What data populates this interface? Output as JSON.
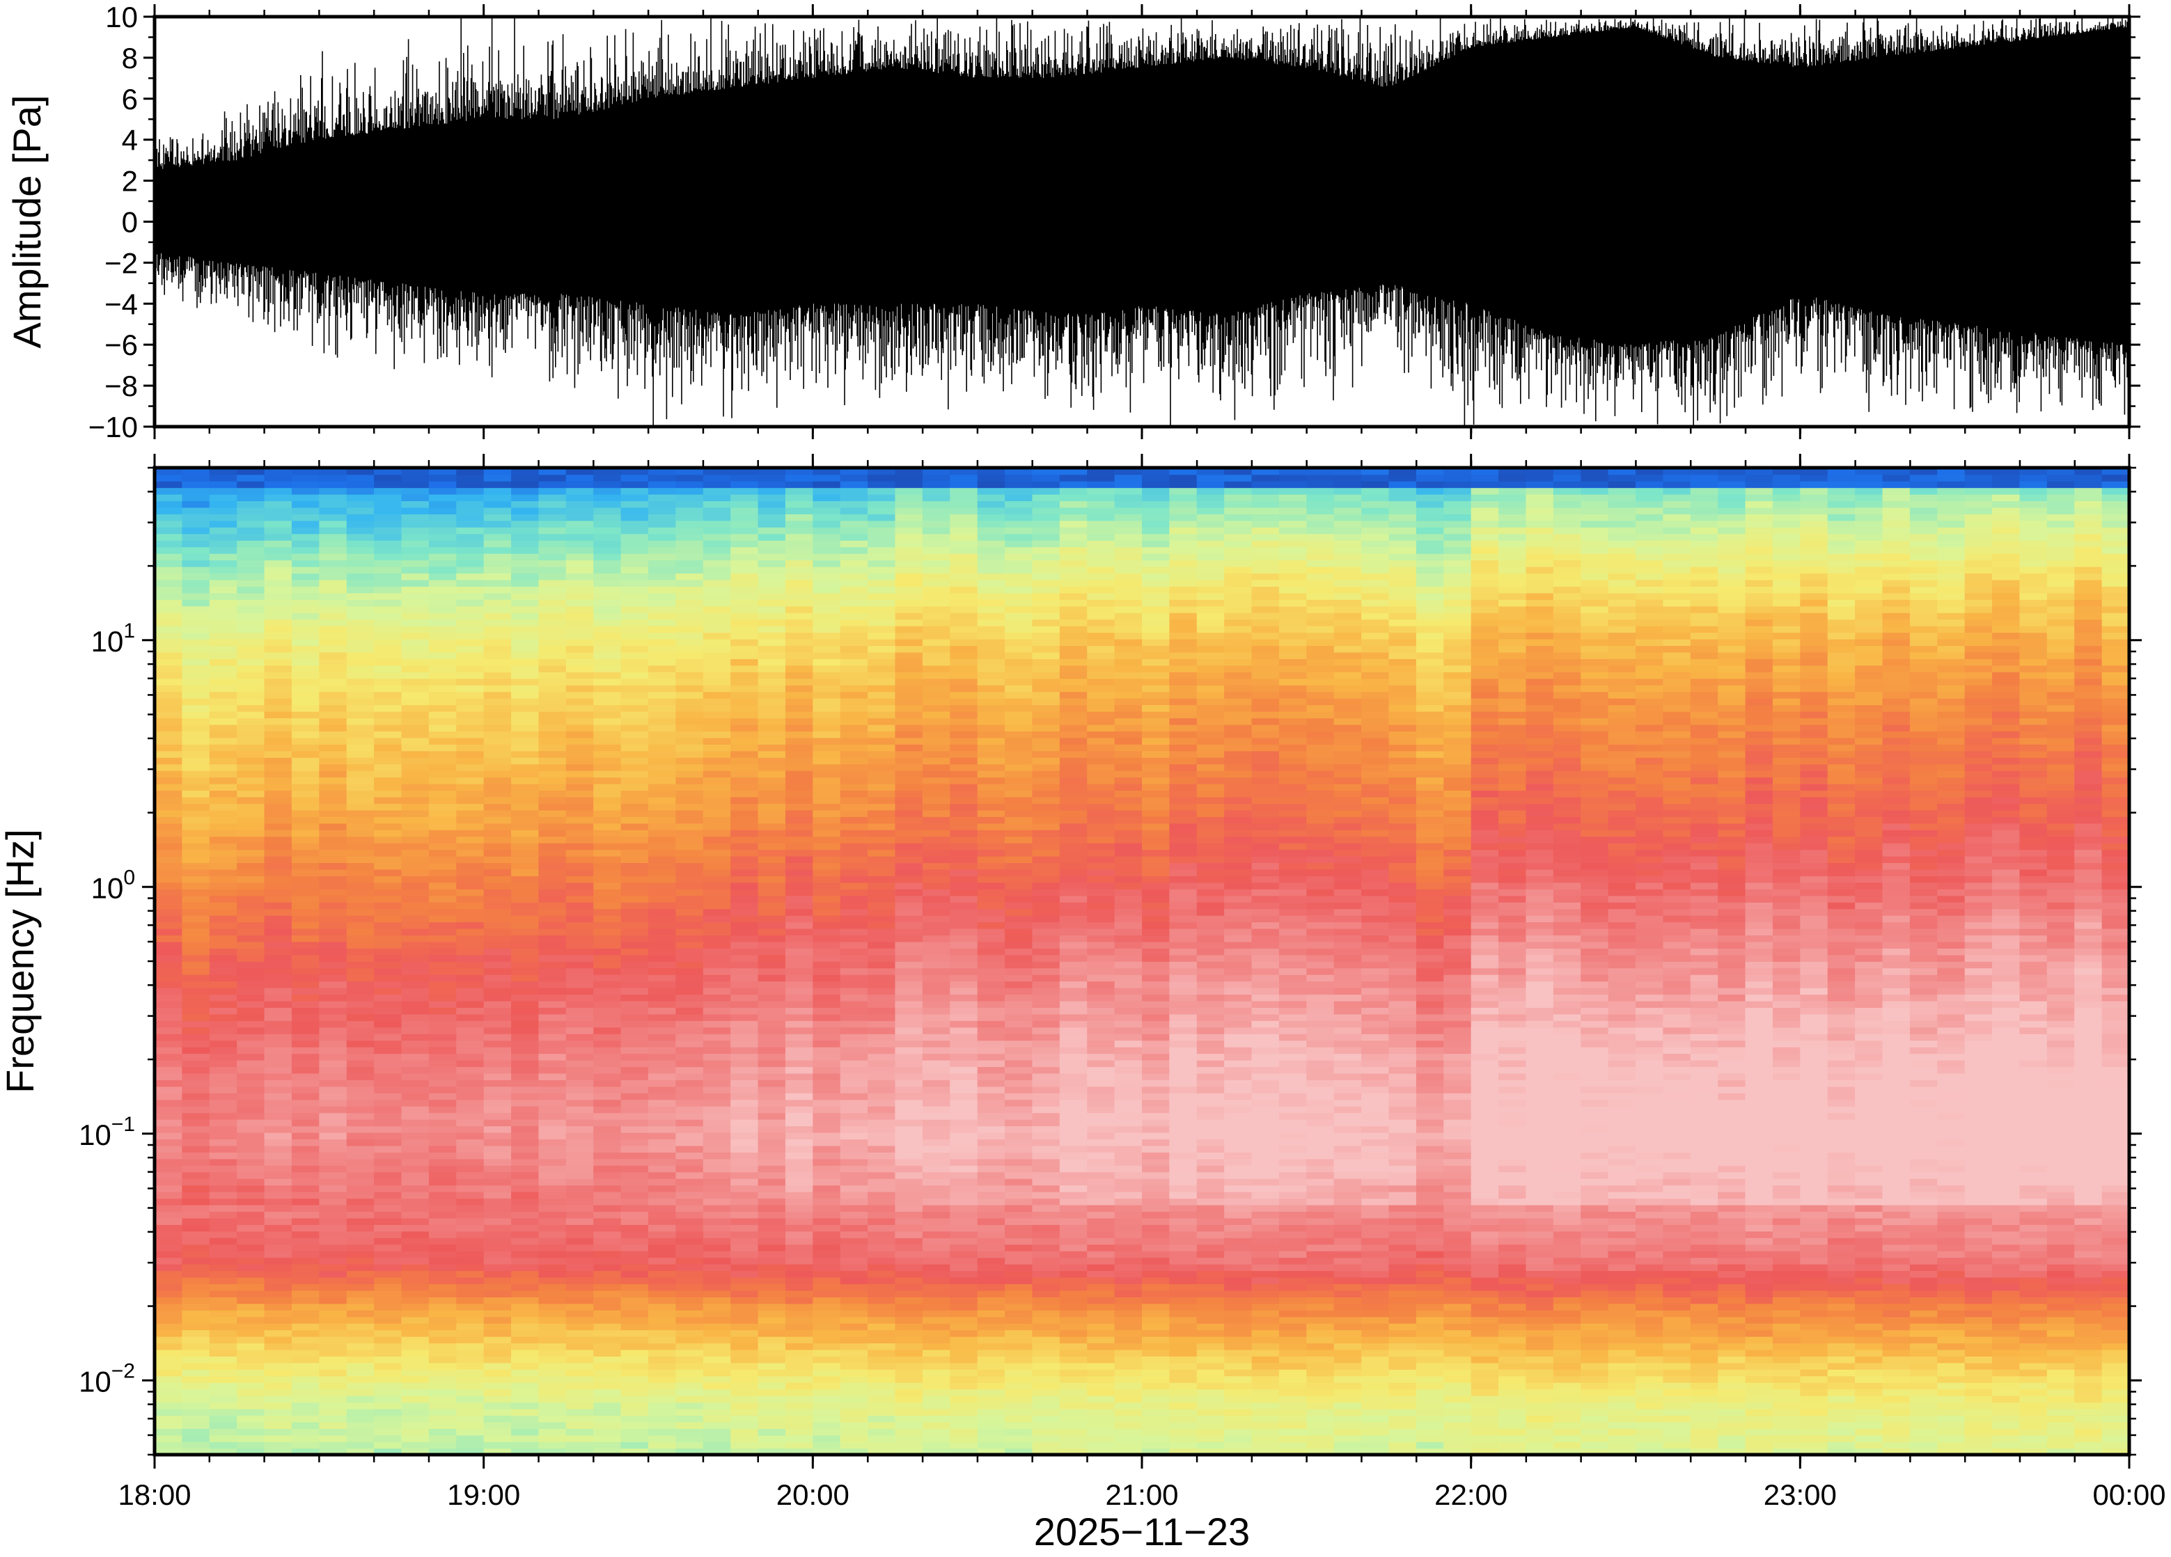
{
  "chart_data": [
    {
      "type": "line",
      "ylabel": "Amplitude [Pa]",
      "ylim": [
        -10,
        10
      ],
      "y_ticks": [
        10,
        8,
        6,
        4,
        2,
        0,
        -2,
        -4,
        -6,
        -8,
        -10
      ],
      "y_tick_labels": [
        "10",
        "8",
        "6",
        "4",
        "2",
        "0",
        "−2",
        "−4",
        "−6",
        "−8",
        "−10"
      ],
      "xlim_hours": [
        18,
        24
      ],
      "envelope": {
        "x_hours": [
          18.0,
          18.25,
          18.5,
          18.75,
          19.0,
          19.25,
          19.5,
          19.75,
          20.0,
          20.25,
          20.5,
          20.75,
          21.0,
          21.25,
          21.5,
          21.75,
          22.0,
          22.25,
          22.5,
          22.75,
          23.0,
          23.25,
          23.5,
          23.75,
          24.0
        ],
        "upper": [
          2.5,
          3.0,
          4.0,
          4.5,
          5.0,
          5.0,
          6.0,
          6.5,
          7.0,
          7.5,
          7.0,
          7.0,
          7.5,
          8.0,
          7.5,
          6.5,
          8.5,
          9.0,
          9.5,
          8.0,
          7.5,
          8.0,
          8.5,
          9.0,
          9.5
        ],
        "lower": [
          -1.5,
          -2.0,
          -2.5,
          -3.0,
          -3.5,
          -3.5,
          -4.0,
          -4.5,
          -4.0,
          -4.0,
          -4.0,
          -4.5,
          -4.0,
          -4.5,
          -3.5,
          -3.0,
          -4.0,
          -5.5,
          -6.0,
          -5.5,
          -3.5,
          -4.5,
          -5.0,
          -5.5,
          -6.0
        ],
        "peak_upper": [
          4.5,
          6.0,
          8.0,
          9.0,
          10.0,
          9.5,
          10.0,
          10.0,
          10.0,
          10.0,
          10.0,
          10.0,
          10.0,
          10.0,
          10.0,
          10.0,
          10.0,
          10.0,
          10.0,
          10.0,
          10.0,
          10.0,
          10.0,
          10.0,
          10.0
        ],
        "peak_lower": [
          -4.0,
          -5.0,
          -6.5,
          -7.0,
          -8.0,
          -8.0,
          -10.0,
          -10.0,
          -9.0,
          -9.5,
          -9.0,
          -10.0,
          -10.0,
          -10.0,
          -9.0,
          -7.5,
          -10.0,
          -10.0,
          -10.0,
          -10.0,
          -8.0,
          -9.5,
          -10.0,
          -10.0,
          -10.0
        ]
      },
      "trace_color": "#000000"
    },
    {
      "type": "heatmap",
      "ylabel": "Frequency [Hz]",
      "xlabel": "2025−11−23",
      "y_scale": "log",
      "ylim": [
        0.005,
        50
      ],
      "y_ticks": [
        {
          "value": 0.01,
          "base": "10",
          "exp": "−2"
        },
        {
          "value": 0.1,
          "base": "10",
          "exp": "−1"
        },
        {
          "value": 1,
          "base": "10",
          "exp": "0"
        },
        {
          "value": 10,
          "base": "10",
          "exp": "1"
        }
      ],
      "x_ticks": [
        {
          "value": 18,
          "label": "18:00"
        },
        {
          "value": 19,
          "label": "19:00"
        },
        {
          "value": 20,
          "label": "20:00"
        },
        {
          "value": 21,
          "label": "21:00"
        },
        {
          "value": 22,
          "label": "22:00"
        },
        {
          "value": 23,
          "label": "23:00"
        },
        {
          "value": 24,
          "label": "00:00"
        }
      ],
      "x_minor_step_hours": 0.1667,
      "xlim_hours": [
        18,
        24
      ],
      "colormap": [
        "#1a237e",
        "#1e6fe8",
        "#35b6f0",
        "#7ee6c8",
        "#d8f59a",
        "#f6e96e",
        "#f9b546",
        "#f48343",
        "#ee5a5a",
        "#f28a8a",
        "#f9c2c2"
      ],
      "level_profile": {
        "freq_hz": [
          0.005,
          0.008,
          0.012,
          0.02,
          0.03,
          0.05,
          0.1,
          0.2,
          0.5,
          1,
          2,
          5,
          10,
          20,
          40,
          50
        ],
        "level": [
          0.38,
          0.42,
          0.52,
          0.66,
          0.82,
          0.88,
          0.94,
          0.9,
          0.82,
          0.74,
          0.66,
          0.58,
          0.5,
          0.38,
          0.22,
          0.06
        ]
      },
      "time_modulation": {
        "x_hours": [
          18.0,
          18.5,
          19.0,
          19.5,
          20.0,
          20.5,
          21.0,
          21.5,
          21.75,
          21.9,
          22.0,
          22.5,
          23.0,
          23.5,
          24.0
        ],
        "offset": [
          -0.06,
          -0.03,
          -0.02,
          0.0,
          0.03,
          0.05,
          0.06,
          0.08,
          0.05,
          -0.02,
          0.1,
          0.12,
          0.1,
          0.12,
          0.13
        ]
      }
    }
  ]
}
